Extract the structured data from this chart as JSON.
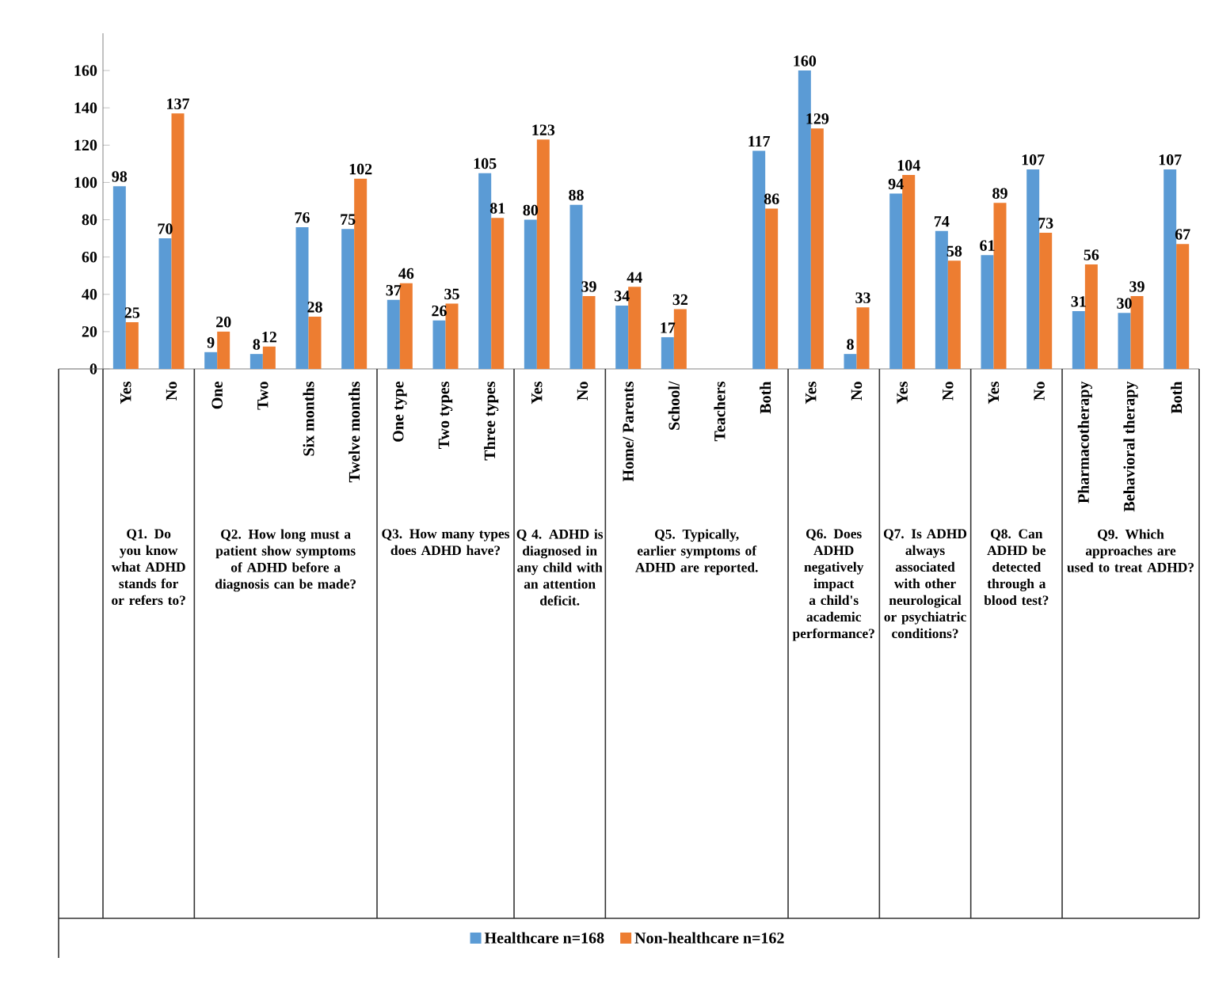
{
  "chart_data": [
    {
      "type": "bar",
      "title": "Q1. Do you know what ADHD stands for or refers to?",
      "categories": [
        "Yes",
        "No"
      ],
      "ylim": [
        0,
        180
      ],
      "yticks": [
        0,
        20,
        40,
        60,
        80,
        100,
        120,
        140,
        160
      ],
      "data_labels": true,
      "legend": "bottom",
      "series": [
        {
          "name": "Healthcare n=168",
          "color": "#5b9bd5",
          "values": [
            98,
            70
          ]
        },
        {
          "name": "Non-healthcare n=162",
          "color": "#ed7d31",
          "values": [
            25,
            137
          ]
        }
      ]
    },
    {
      "type": "bar",
      "title": "Q2. How long must a patient show symptoms of ADHD before a diagnosis can be made?",
      "categories": [
        "One",
        "Two",
        "Six months",
        "Twelve months"
      ],
      "tick_labels": "x",
      "data_labels": true,
      "series": [
        {
          "color": "#5b9bd5",
          "values": [
            9,
            8,
            76,
            75
          ]
        },
        {
          "color": "#ed7d31",
          "values": [
            20,
            12,
            28,
            102
          ]
        }
      ]
    },
    {
      "type": "bar",
      "title": "Q3. How many types does ADHD have?",
      "categories": [
        "One type",
        "Two types",
        "Three types"
      ],
      "tick_labels": "x",
      "data_labels": true,
      "series": [
        {
          "color": "#5b9bd5",
          "values": [
            37,
            26,
            105
          ]
        },
        {
          "color": "#ed7d31",
          "values": [
            46,
            35,
            81
          ]
        }
      ]
    },
    {
      "type": "bar",
      "title": "Q 4. ADHD is diagnosed in any child with an attention deficit.",
      "categories": [
        "Yes",
        "No"
      ],
      "tick_labels": "x",
      "data_labels": true,
      "series": [
        {
          "color": "#5b9bd5",
          "values": [
            80,
            88
          ]
        },
        {
          "color": "#ed7d31",
          "values": [
            123,
            39
          ]
        }
      ]
    },
    {
      "type": "bar",
      "title": "Q5. Typically, earlier symptoms of ADHD are reported.",
      "categories": [
        "Home/ Parents",
        "School/",
        "Teachers",
        "Both"
      ],
      "tick_labels": "x",
      "data_labels": true,
      "series": [
        {
          "color": "#5b9bd5",
          "values": [
            34,
            17,
            null,
            117
          ]
        },
        {
          "color": "#ed7d31",
          "values": [
            44,
            32,
            null,
            86
          ]
        }
      ]
    },
    {
      "type": "bar",
      "title": "Q6. Does ADHD negatively impact a child's academic performance?",
      "categories": [
        "Yes",
        "No"
      ],
      "tick_labels": "x",
      "data_labels": true,
      "series": [
        {
          "color": "#5b9bd5",
          "values": [
            160,
            8
          ]
        },
        {
          "color": "#ed7d31",
          "values": [
            129,
            33
          ]
        }
      ]
    },
    {
      "type": "bar",
      "title": "Q7. Is ADHD always associated with other neurological or psychiatric conditions?",
      "categories": [
        "Yes",
        "No"
      ],
      "tick_labels": "x",
      "data_labels": true,
      "series": [
        {
          "color": "#5b9bd5",
          "values": [
            94,
            74
          ]
        },
        {
          "color": "#ed7d31",
          "values": [
            104,
            58
          ]
        }
      ]
    },
    {
      "type": "bar",
      "title": "Q8. Can ADHD be detected through a blood test?",
      "categories": [
        "Yes",
        "No"
      ],
      "tick_labels": "x",
      "data_labels": true,
      "series": [
        {
          "color": "#5b9bd5",
          "values": [
            61,
            107
          ]
        },
        {
          "color": "#ed7d31",
          "values": [
            89,
            73
          ]
        }
      ]
    },
    {
      "type": "bar",
      "title": "Q9. Which approaches are used to treat ADHD?",
      "categories": [
        "Pharmacotherapy",
        "Behavioral therapy",
        "Both"
      ],
      "tick_labels": "x",
      "data_labels": true,
      "series": [
        {
          "color": "#5b9bd5",
          "values": [
            31,
            30,
            107
          ]
        },
        {
          "color": "#ed7d31",
          "values": [
            56,
            39,
            67
          ]
        }
      ]
    }
  ]
}
